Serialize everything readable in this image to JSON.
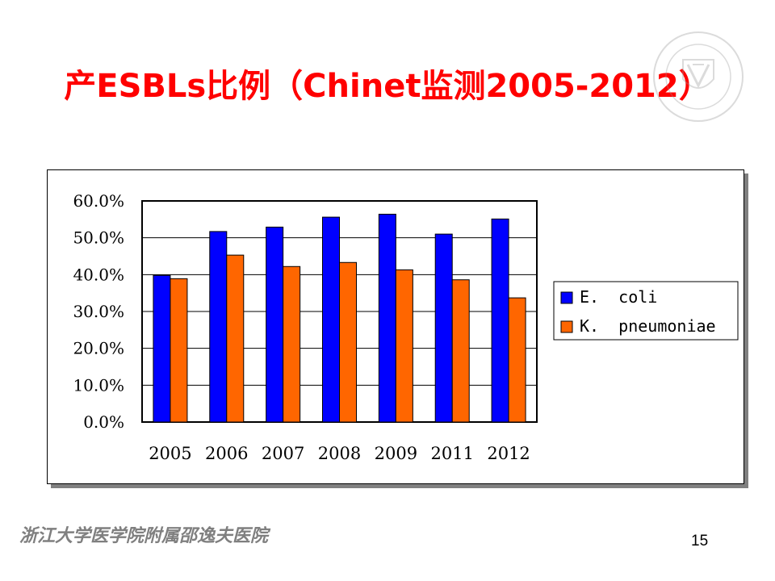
{
  "slide": {
    "title": "产ESBLs比例（Chinet监测2005-2012）",
    "footer": "浙江大学医学院附属邵逸夫医院",
    "page_number": "15",
    "logo_icon": "hospital-crest-icon"
  },
  "colors": {
    "title": "#ff0000",
    "ecoli": "#0000ff",
    "kpneumoniae": "#ff6600",
    "footer": "#7f7f7f"
  },
  "chart_data": {
    "type": "bar",
    "categories": [
      "2005",
      "2006",
      "2007",
      "2008",
      "2009",
      "2011",
      "2012"
    ],
    "series": [
      {
        "name": "E.  coli",
        "color": "#0000ff",
        "values": [
          39.8,
          51.7,
          52.9,
          55.6,
          56.4,
          51.0,
          55.1
        ]
      },
      {
        "name": "K.  pneumoniae",
        "color": "#ff6600",
        "values": [
          38.9,
          45.3,
          42.2,
          43.3,
          41.3,
          38.6,
          33.7
        ]
      }
    ],
    "ylim": [
      0,
      60
    ],
    "y_ticks": [
      "0.0%",
      "10.0%",
      "20.0%",
      "30.0%",
      "40.0%",
      "50.0%",
      "60.0%"
    ],
    "grid": true,
    "legend_position": "right"
  }
}
